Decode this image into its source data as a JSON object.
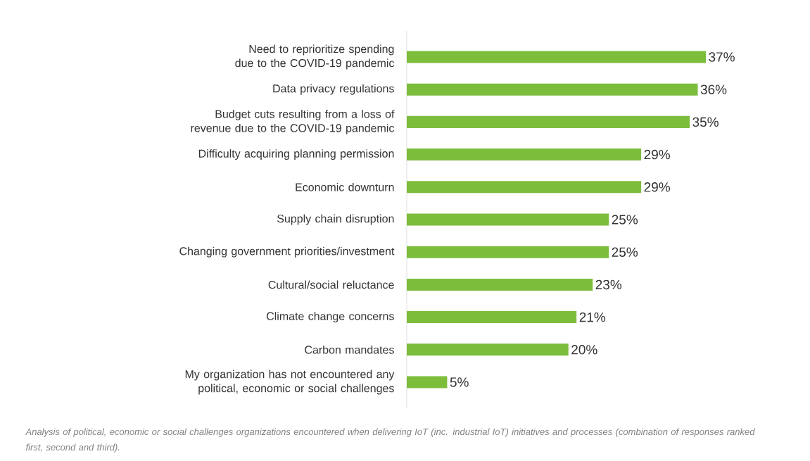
{
  "chart_data": {
    "type": "bar",
    "orientation": "horizontal",
    "color": "#7dbd3c",
    "categories": [
      "Need to reprioritize spending due to the COVID-19 pandemic",
      "Data privacy regulations",
      "Budget cuts resulting from a loss of revenue due to the COVID-19 pandemic",
      "Difficulty acquiring planning permission",
      "Economic downturn",
      "Supply chain disruption",
      "Changing government priorities/investment",
      "Cultural/social reluctance",
      "Climate change concerns",
      "Carbon mandates",
      "My organization has not encountered any political, economic or social challenges"
    ],
    "values": [
      37,
      36,
      35,
      29,
      29,
      25,
      25,
      23,
      21,
      20,
      5
    ],
    "value_labels": [
      "37%",
      "36%",
      "35%",
      "29%",
      "29%",
      "25%",
      "25%",
      "23%",
      "21%",
      "20%",
      "5%"
    ],
    "annotations": [
      "Analysis of political, economic or social challenges organizations encountered when delivering IoT (inc. industrial IoT) initiatives and processes (combination of responses ranked first, second and third)."
    ]
  }
}
